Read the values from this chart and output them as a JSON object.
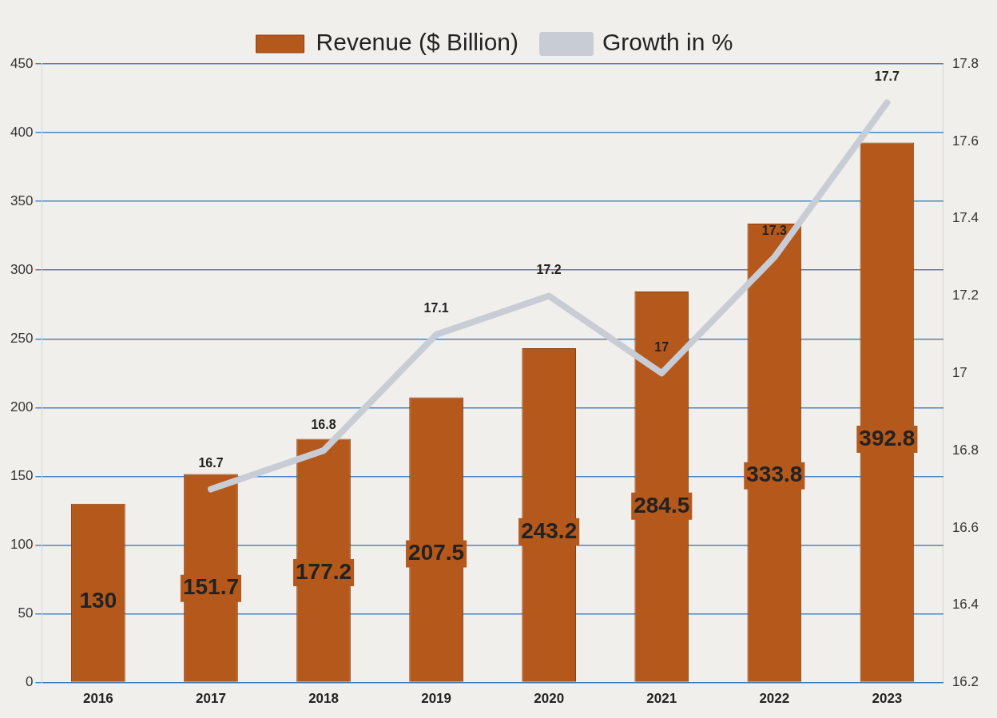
{
  "chart_data": {
    "type": "bar",
    "categories": [
      "2016",
      "2017",
      "2018",
      "2019",
      "2020",
      "2021",
      "2022",
      "2023"
    ],
    "series": [
      {
        "name": "Revenue ($ Billion)",
        "color": "#b5581c",
        "values": [
          130,
          151.7,
          177.2,
          207.5,
          243.2,
          284.5,
          333.8,
          392.8
        ]
      },
      {
        "name": "Growth in %",
        "type": "line",
        "axis": "y2",
        "color": "#c8ccd4",
        "values": [
          null,
          16.7,
          16.8,
          17.1,
          17.2,
          17,
          17.3,
          17.7
        ]
      }
    ],
    "ylim": [
      0,
      450
    ],
    "yticks": [
      0,
      50,
      100,
      150,
      200,
      250,
      300,
      350,
      400,
      450
    ],
    "y2lim": [
      16.2,
      17.8
    ],
    "y2ticks": [
      16.2,
      16.4,
      16.6,
      16.8,
      17,
      17.2,
      17.4,
      17.6,
      17.8
    ],
    "grid": "y",
    "legend": "top",
    "data_labels": true,
    "marker": "none"
  }
}
